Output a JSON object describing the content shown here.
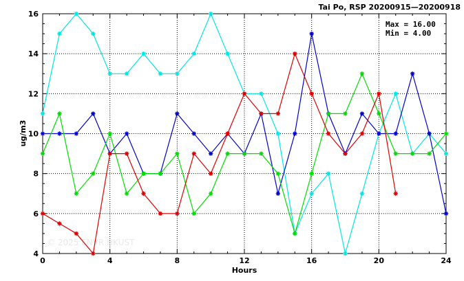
{
  "chart_data": {
    "type": "line",
    "title": "Tai Po, RSP 20200915—20200918",
    "xlabel": "Hours",
    "ylabel": "ug/m3",
    "xlim": [
      0,
      24
    ],
    "ylim": [
      4,
      16
    ],
    "xticks": [
      0,
      4,
      8,
      12,
      16,
      20,
      24
    ],
    "yticks": [
      4,
      6,
      8,
      10,
      12,
      14,
      16
    ],
    "grid": true,
    "stats": {
      "max_label": "Max = 16.00",
      "min_label": "Min =  4.00"
    },
    "watermark": "© 2025 ENVR HKUST",
    "series": [
      {
        "color": "#00e5e5",
        "x": [
          0,
          1,
          2,
          3,
          4,
          5,
          6,
          7,
          8,
          9,
          10,
          11,
          12,
          13,
          14,
          15,
          16,
          17,
          18,
          19,
          20,
          21,
          22,
          23,
          24
        ],
        "values": [
          11,
          15,
          16,
          15,
          13,
          13,
          14,
          13,
          13,
          14,
          16,
          14,
          12,
          12,
          10,
          5,
          7,
          8,
          4,
          7,
          10,
          12,
          9,
          10,
          9
        ]
      },
      {
        "color": "#0000cc",
        "x": [
          0,
          1,
          2,
          3,
          4,
          5,
          6,
          7,
          8,
          9,
          10,
          11,
          12,
          13,
          14,
          15,
          16,
          17,
          18,
          19,
          20,
          21,
          22,
          23,
          24
        ],
        "values": [
          10,
          10,
          10,
          11,
          9,
          10,
          8,
          8,
          11,
          10,
          9,
          10,
          9,
          11,
          7,
          10,
          15,
          11,
          9,
          11,
          10,
          10,
          13,
          10,
          6
        ]
      },
      {
        "color": "#00dd00",
        "x": [
          0,
          1,
          2,
          3,
          4,
          5,
          6,
          7,
          8,
          9,
          10,
          11,
          12,
          13,
          14,
          15,
          16,
          17,
          18,
          19,
          20,
          21,
          22,
          23,
          24
        ],
        "values": [
          9,
          11,
          7,
          8,
          10,
          7,
          8,
          8,
          9,
          6,
          7,
          9,
          9,
          9,
          8,
          5,
          8,
          11,
          11,
          13,
          11,
          9,
          9,
          9,
          10
        ]
      },
      {
        "color": "#dd0000",
        "x": [
          0,
          1,
          2,
          3,
          4,
          5,
          6,
          7,
          8,
          9,
          10,
          11,
          12,
          13,
          14,
          15,
          16,
          17,
          18,
          19,
          20,
          21
        ],
        "values": [
          6,
          5.5,
          5,
          4,
          9,
          9,
          7,
          6,
          6,
          9,
          8,
          10,
          12,
          11,
          11,
          14,
          12,
          10,
          9,
          10,
          12,
          7
        ]
      }
    ]
  }
}
